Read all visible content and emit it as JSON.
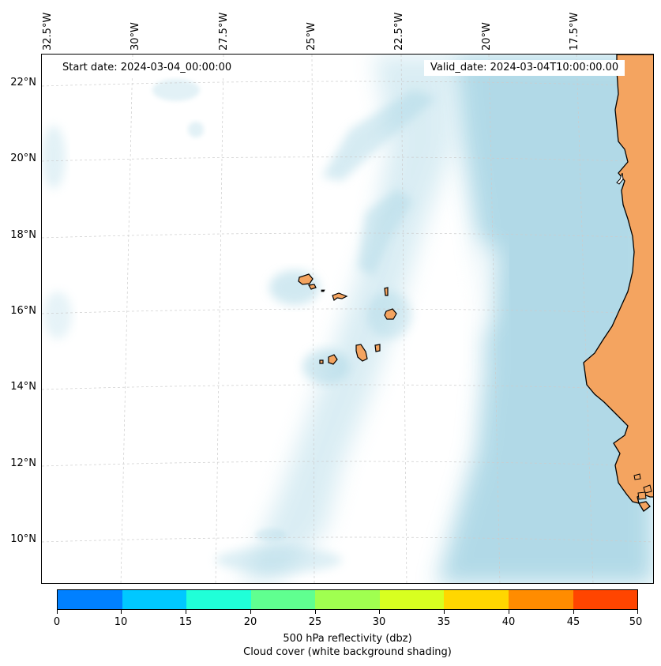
{
  "map": {
    "start_date": "Start date: 2024-03-04_00:00:00",
    "valid_date": "Valid_date: 2024-03-04T10:00:00.00",
    "longitude_labels": [
      "32.5°W",
      "30°W",
      "27.5°W",
      "25°W",
      "22.5°W",
      "20°W",
      "17.5°W"
    ],
    "latitude_labels": [
      "22°N",
      "20°N",
      "18°N",
      "16°N",
      "14°N",
      "12°N",
      "10°N"
    ],
    "colors": {
      "land": "#f4a460",
      "cloud_cover": "#add8e6",
      "coastline": "#000000",
      "gridline": "#cccccc"
    }
  },
  "colorbar": {
    "tick_labels": [
      "0",
      "10",
      "15",
      "20",
      "25",
      "30",
      "35",
      "40",
      "45",
      "50"
    ],
    "colors": [
      "#0080ff",
      "#00c8ff",
      "#20ffd8",
      "#60ff90",
      "#a0ff50",
      "#d8ff20",
      "#ffd700",
      "#ff8c00",
      "#ff4500"
    ],
    "label_line1": "500 hPa reflectivity (dbz)",
    "label_line2": "Cloud cover (white background shading)"
  }
}
